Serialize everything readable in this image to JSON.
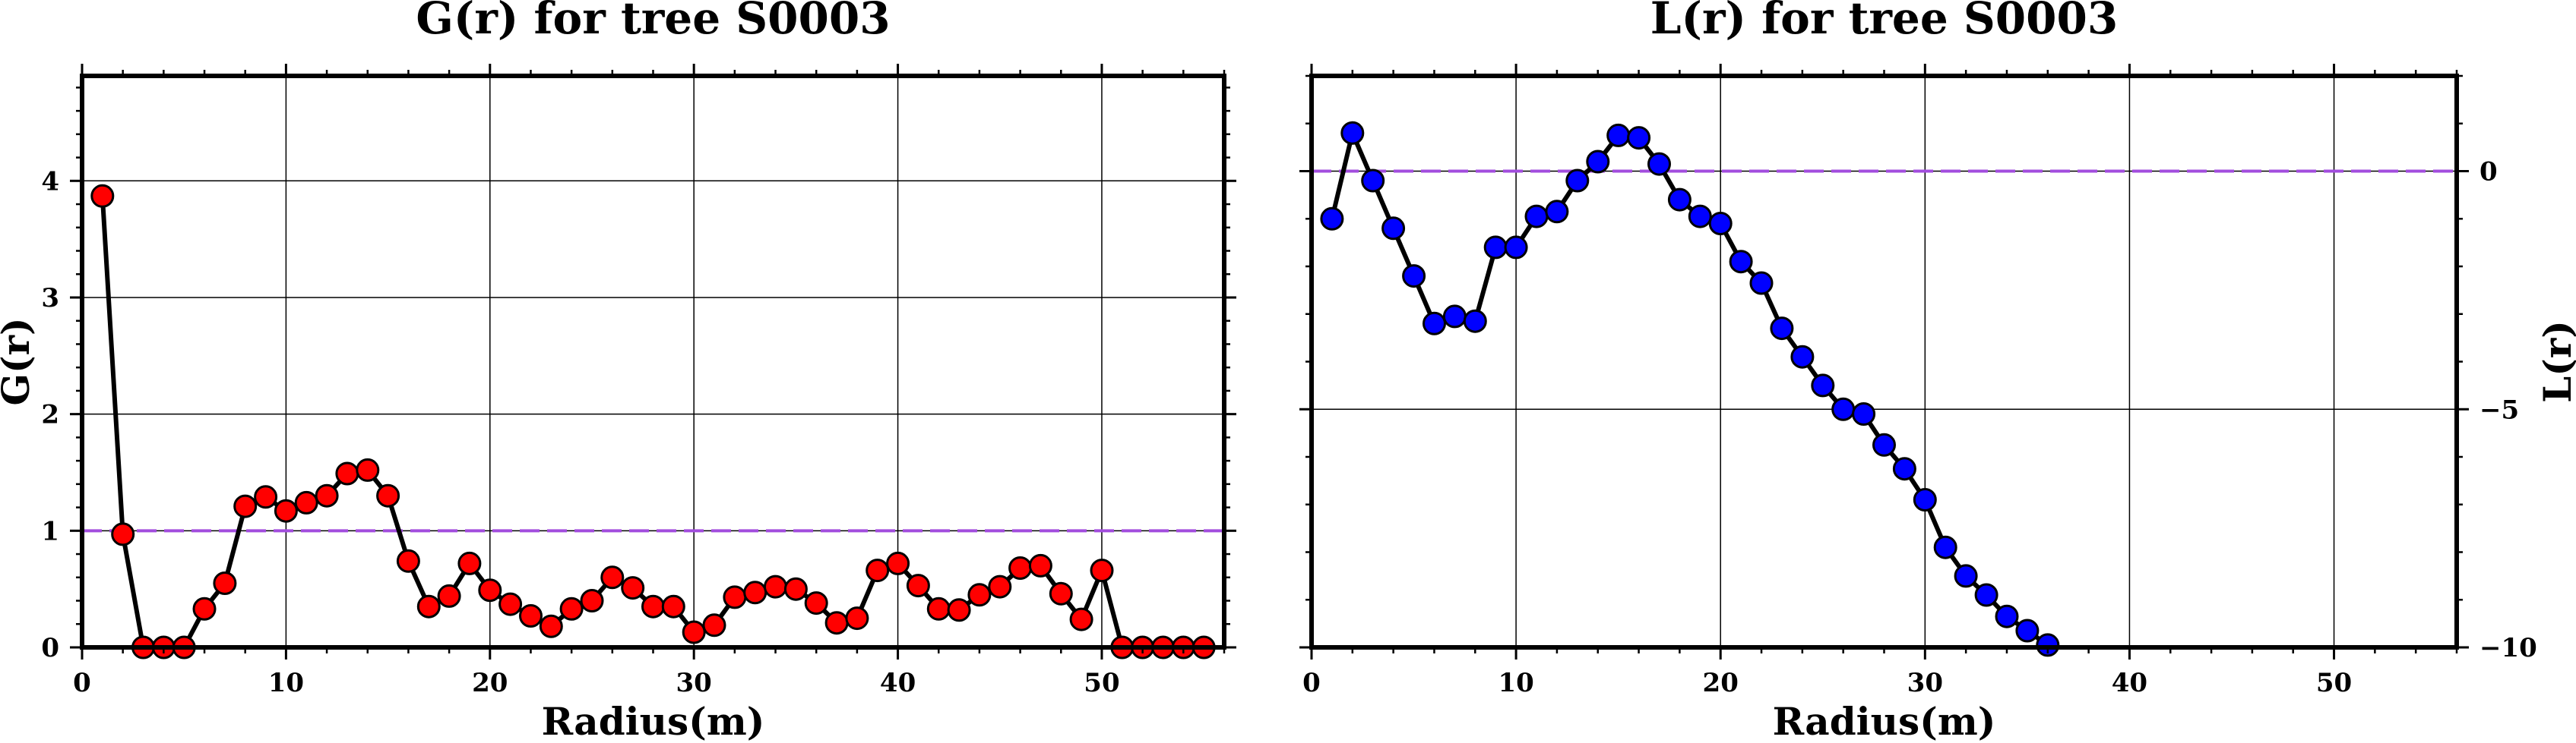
{
  "chart_data": [
    {
      "type": "line",
      "title": "G(r) for tree S0003",
      "xlabel": "Radius(m)",
      "ylabel": "G(r)",
      "xlim": [
        0,
        56
      ],
      "ylim": [
        0,
        4.9
      ],
      "xticks": [
        "0",
        "10",
        "20",
        "30",
        "40",
        "50"
      ],
      "yticks": [
        "0",
        "1",
        "2",
        "3",
        "4"
      ],
      "grid": true,
      "reference_line": {
        "y": 1,
        "style": "dashed",
        "color": "#a24dde"
      },
      "line_color": "#000000",
      "marker_color": "#ff0000",
      "x": [
        1,
        2,
        3,
        4,
        5,
        6,
        7,
        8,
        9,
        10,
        11,
        12,
        13,
        14,
        15,
        16,
        17,
        18,
        19,
        20,
        21,
        22,
        23,
        24,
        25,
        26,
        27,
        28,
        29,
        30,
        31,
        32,
        33,
        34,
        35,
        36,
        37,
        38,
        39,
        40,
        41,
        42,
        43,
        44,
        45,
        46,
        47,
        48,
        49,
        50,
        51,
        52,
        53,
        54,
        55
      ],
      "values": [
        3.87,
        0.97,
        0.0,
        0.0,
        0.0,
        0.33,
        0.55,
        1.21,
        1.29,
        1.17,
        1.24,
        1.3,
        1.49,
        1.52,
        1.3,
        0.74,
        0.35,
        0.44,
        0.72,
        0.49,
        0.37,
        0.27,
        0.18,
        0.33,
        0.4,
        0.6,
        0.51,
        0.35,
        0.35,
        0.13,
        0.19,
        0.43,
        0.47,
        0.52,
        0.5,
        0.38,
        0.21,
        0.25,
        0.66,
        0.72,
        0.53,
        0.33,
        0.32,
        0.45,
        0.52,
        0.68,
        0.7,
        0.46,
        0.24,
        0.66,
        0.0,
        0.0,
        0.0,
        0.0,
        0.0
      ]
    },
    {
      "type": "line",
      "title": "L(r) for tree S0003",
      "xlabel": "Radius(m)",
      "ylabel": "L(r)",
      "xlim": [
        0,
        56
      ],
      "ylim": [
        -10,
        2
      ],
      "xticks": [
        "0",
        "10",
        "20",
        "30",
        "40",
        "50"
      ],
      "yticks": [
        "0",
        "−5",
        "−10"
      ],
      "grid": true,
      "reference_line": {
        "y": 0,
        "style": "dashed",
        "color": "#a24dde"
      },
      "line_color": "#000000",
      "marker_color": "#0000ff",
      "x": [
        1,
        2,
        3,
        4,
        5,
        6,
        7,
        8,
        9,
        10,
        11,
        12,
        13,
        14,
        15,
        16,
        17,
        18,
        19,
        20,
        21,
        22,
        23,
        24,
        25,
        26,
        27,
        28,
        29,
        30,
        31,
        32,
        33,
        34,
        35,
        36
      ],
      "values": [
        -1.0,
        0.8,
        -0.2,
        -1.2,
        -2.2,
        -3.2,
        -3.05,
        -3.15,
        -1.6,
        -1.6,
        -0.95,
        -0.85,
        -0.2,
        0.2,
        0.75,
        0.7,
        0.15,
        -0.6,
        -0.95,
        -1.1,
        -1.9,
        -2.35,
        -3.3,
        -3.9,
        -4.5,
        -5.0,
        -5.1,
        -5.75,
        -6.25,
        -6.9,
        -7.9,
        -8.5,
        -8.9,
        -9.35,
        -9.65,
        -9.95
      ]
    }
  ]
}
